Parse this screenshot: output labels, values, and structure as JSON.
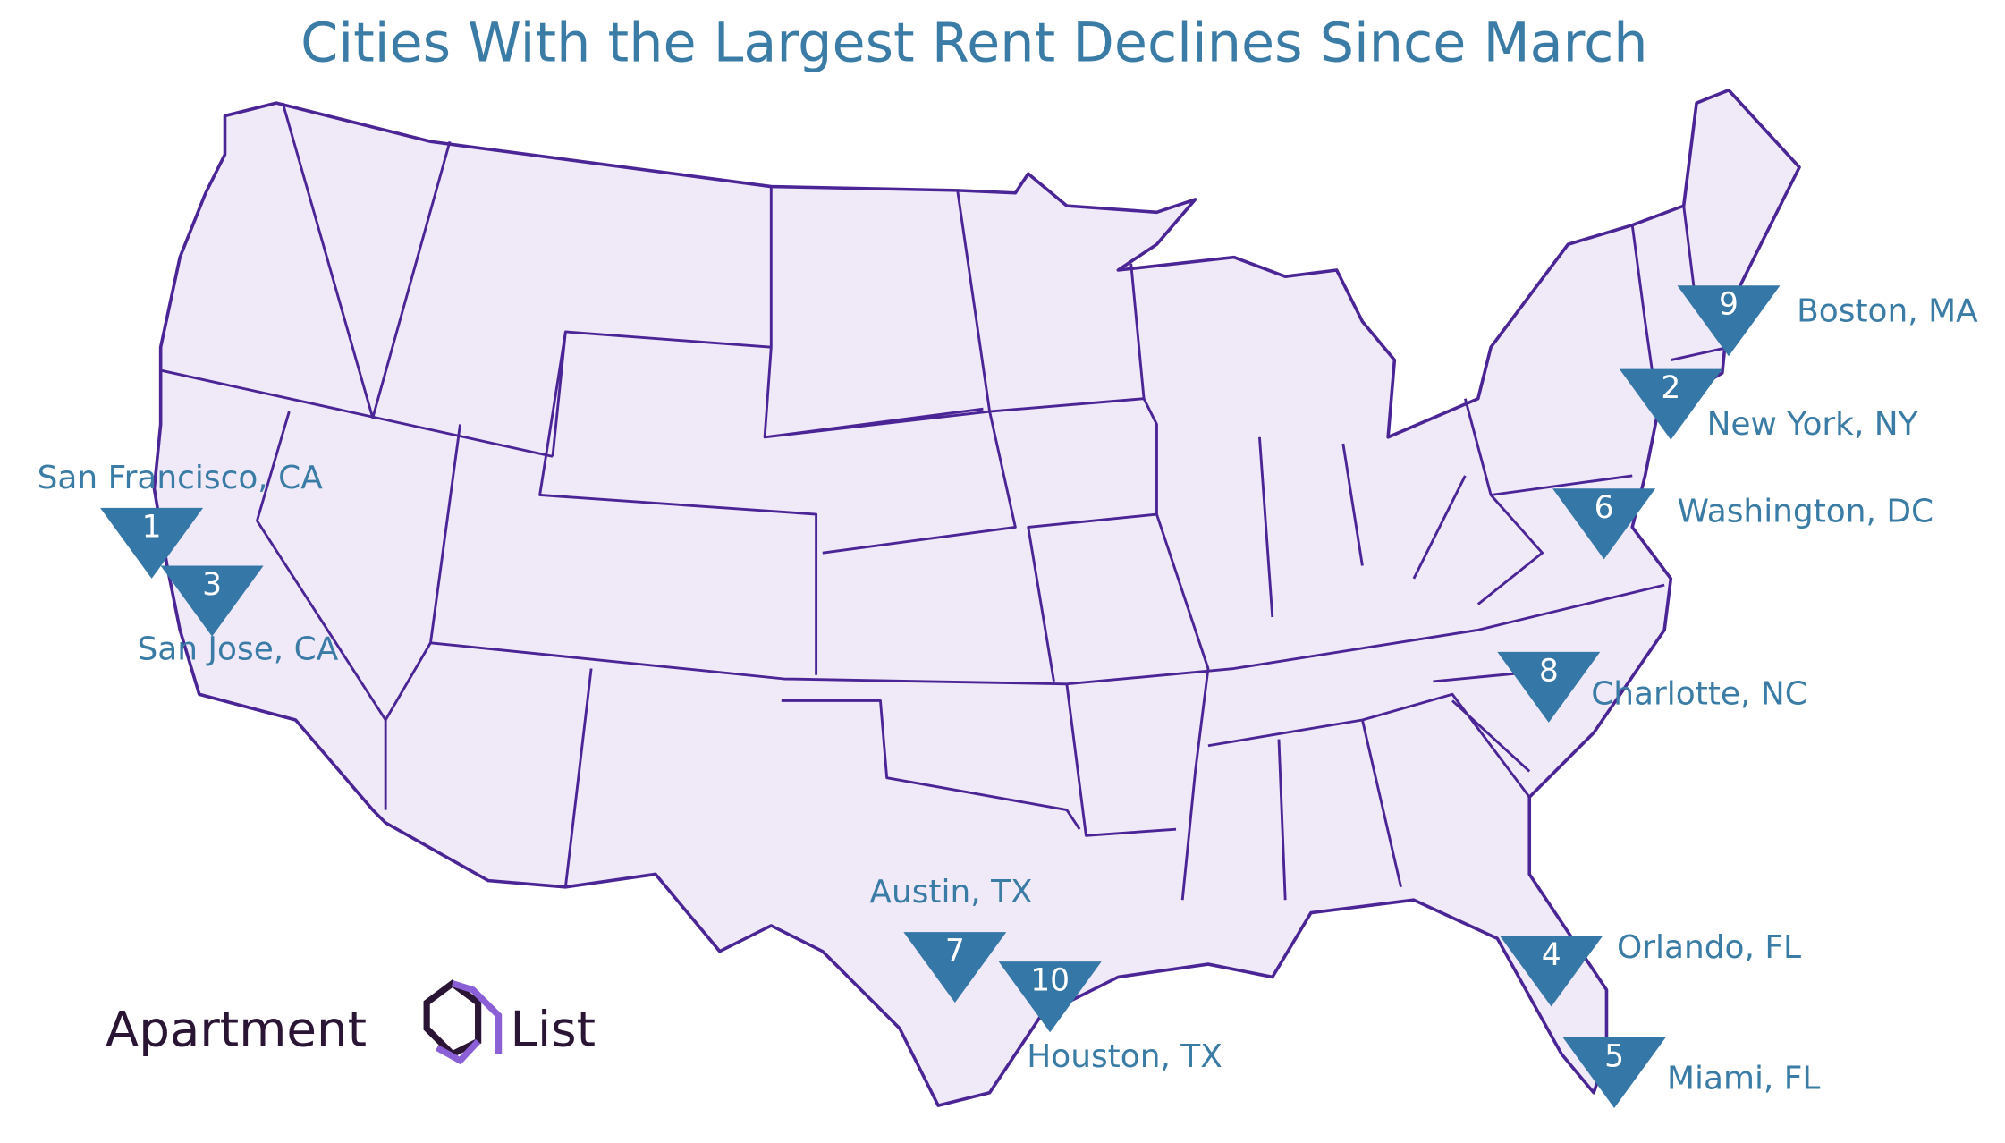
{
  "title": "Cities With the Largest Rent Declines Since March",
  "markers": [
    {
      "rank": 1,
      "label": "San Francisco, CA"
    },
    {
      "rank": 2,
      "label": "New York, NY"
    },
    {
      "rank": 3,
      "label": "San Jose, CA"
    },
    {
      "rank": 4,
      "label": "Orlando, FL"
    },
    {
      "rank": 5,
      "label": "Miami, FL"
    },
    {
      "rank": 6,
      "label": "Washington, DC"
    },
    {
      "rank": 7,
      "label": "Austin, TX"
    },
    {
      "rank": 8,
      "label": "Charlotte, NC"
    },
    {
      "rank": 9,
      "label": "Boston, MA"
    },
    {
      "rank": 10,
      "label": "Houston, TX"
    }
  ],
  "logo": {
    "left": "Apartment",
    "right": "List"
  }
}
